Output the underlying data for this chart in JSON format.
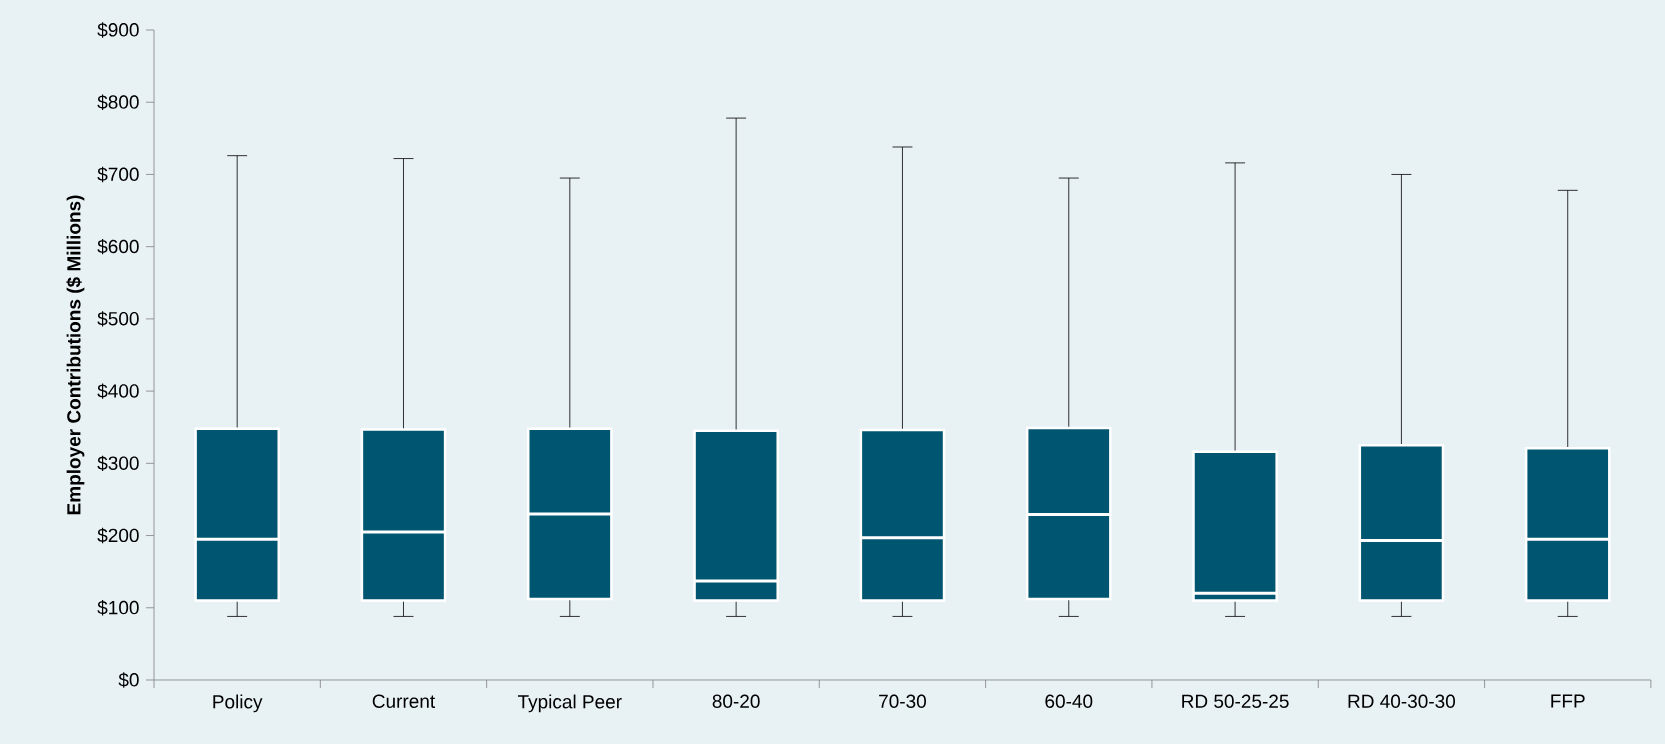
{
  "chart_data": {
    "type": "box",
    "ylabel": "Employer Contributions ($ Millions)",
    "color": "#005670",
    "categories": [
      "Policy",
      "Current",
      "Typical Peer",
      "80-20",
      "70-30",
      "60-40",
      "RD 50-25-25",
      "RD 40-30-30",
      "FFP"
    ],
    "boxes": [
      {
        "low": 88,
        "q1": 110,
        "median": 195,
        "q3": 348,
        "high": 726
      },
      {
        "low": 88,
        "q1": 110,
        "median": 205,
        "q3": 347,
        "high": 722
      },
      {
        "low": 88,
        "q1": 112,
        "median": 230,
        "q3": 348,
        "high": 695
      },
      {
        "low": 88,
        "q1": 110,
        "median": 137,
        "q3": 345,
        "high": 778
      },
      {
        "low": 88,
        "q1": 110,
        "median": 197,
        "q3": 346,
        "high": 738
      },
      {
        "low": 88,
        "q1": 112,
        "median": 229,
        "q3": 349,
        "high": 695
      },
      {
        "low": 88,
        "q1": 110,
        "median": 120,
        "q3": 316,
        "high": 716
      },
      {
        "low": 88,
        "q1": 110,
        "median": 193,
        "q3": 325,
        "high": 700
      },
      {
        "low": 88,
        "q1": 110,
        "median": 195,
        "q3": 321,
        "high": 678
      }
    ],
    "ylim": [
      0,
      900
    ],
    "yticks": [
      {
        "value": 0,
        "label": "$0"
      },
      {
        "value": 100,
        "label": "$100"
      },
      {
        "value": 200,
        "label": "$200"
      },
      {
        "value": 300,
        "label": "$300"
      },
      {
        "value": 400,
        "label": "$400"
      },
      {
        "value": 500,
        "label": "$500"
      },
      {
        "value": 600,
        "label": "$600"
      },
      {
        "value": 700,
        "label": "$700"
      },
      {
        "value": 800,
        "label": "$800"
      },
      {
        "value": 900,
        "label": "$900"
      }
    ]
  }
}
